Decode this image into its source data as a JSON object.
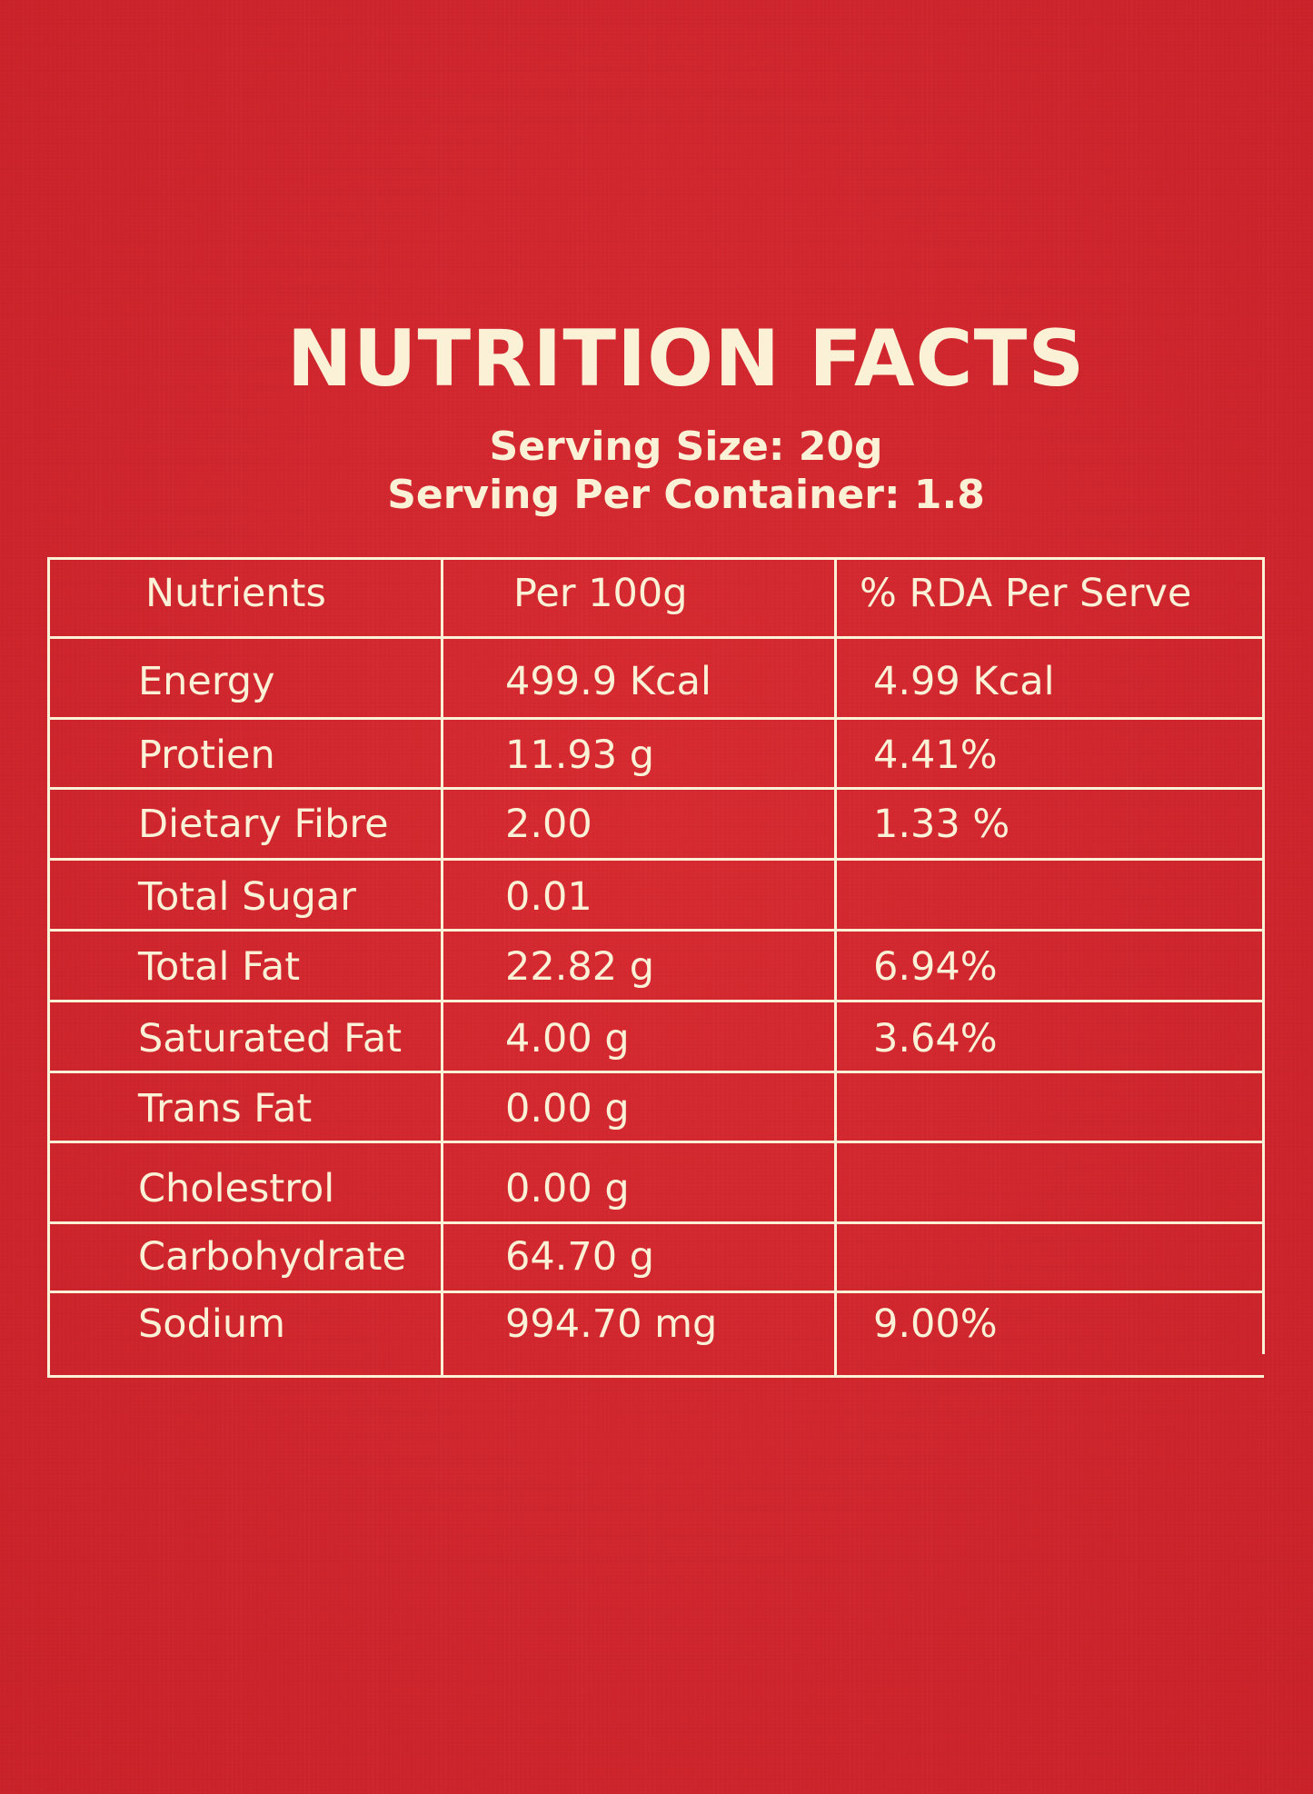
{
  "title": "NUTRITION FACTS",
  "serving_size": "Serving Size: 20g",
  "servings_per_container": "Serving Per Container: 1.8",
  "colors": {
    "background": "#d3262e",
    "text_and_lines": "#fbf1d6"
  },
  "table": {
    "headers": [
      "Nutrients",
      "Per 100g",
      "% RDA Per Serve"
    ],
    "rows": [
      {
        "nutrient": "Energy",
        "per_100g": "499.9 Kcal",
        "rda": "4.99 Kcal"
      },
      {
        "nutrient": "Protien",
        "per_100g": "11.93 g",
        "rda": "4.41%"
      },
      {
        "nutrient": "Dietary Fibre",
        "per_100g": "2.00",
        "rda": "1.33 %"
      },
      {
        "nutrient": "Total Sugar",
        "per_100g": "0.01",
        "rda": ""
      },
      {
        "nutrient": "Total Fat",
        "per_100g": "22.82 g",
        "rda": "6.94%"
      },
      {
        "nutrient": "Saturated Fat",
        "per_100g": "4.00 g",
        "rda": "3.64%"
      },
      {
        "nutrient": "Trans Fat",
        "per_100g": "0.00 g",
        "rda": ""
      },
      {
        "nutrient": "Cholestrol",
        "per_100g": "0.00 g",
        "rda": ""
      },
      {
        "nutrient": "Carbohydrate",
        "per_100g": "64.70 g",
        "rda": ""
      },
      {
        "nutrient": "Sodium",
        "per_100g": "994.70 mg",
        "rda": "9.00%"
      }
    ]
  }
}
